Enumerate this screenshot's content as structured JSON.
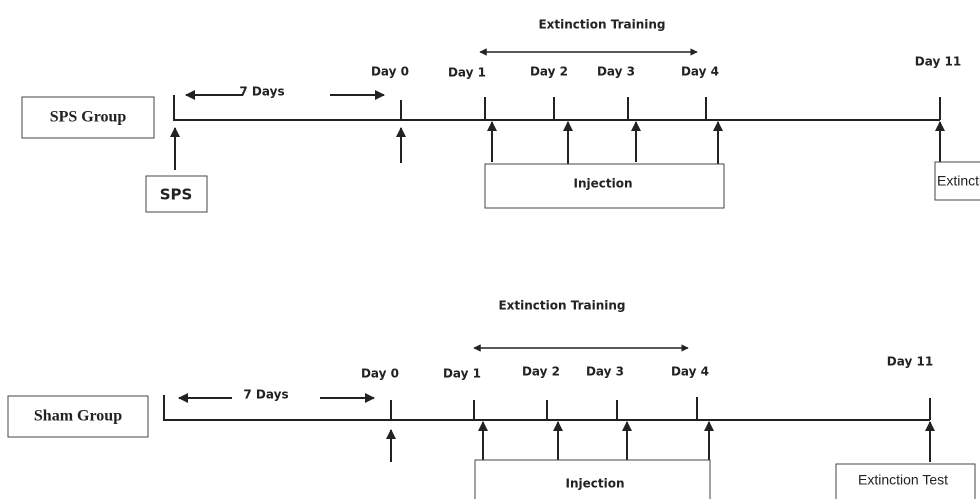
{
  "panels": [
    {
      "group": "SPS Group",
      "interval": "7 Days",
      "training": "Extinction Training",
      "days": [
        "Day 0",
        "Day 1",
        "Day 2",
        "Day 3",
        "Day 4",
        "Day 11"
      ],
      "stress": "SPS",
      "injection": "Injection",
      "test": "Extinction Test"
    },
    {
      "group": "Sham Group",
      "interval": "7 Days",
      "training": "Extinction Training",
      "days": [
        "Day 0",
        "Day 1",
        "Day 2",
        "Day 3",
        "Day 4",
        "Day 11"
      ],
      "injection": "Injection",
      "test": "Extinction Test"
    }
  ]
}
